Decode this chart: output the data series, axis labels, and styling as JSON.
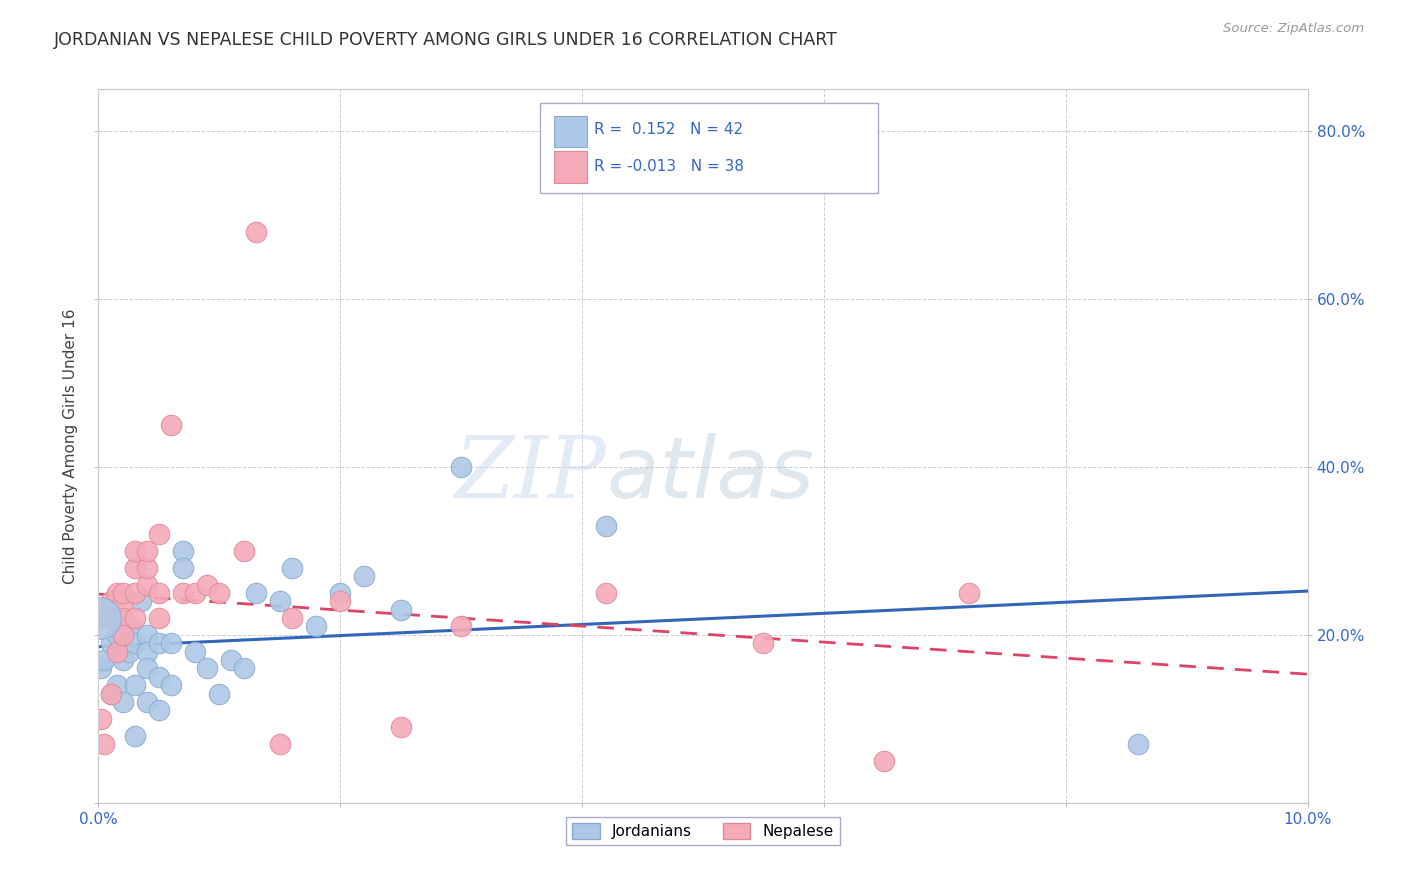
{
  "title": "JORDANIAN VS NEPALESE CHILD POVERTY AMONG GIRLS UNDER 16 CORRELATION CHART",
  "source": "Source: ZipAtlas.com",
  "ylabel": "Child Poverty Among Girls Under 16",
  "xlim": [
    0.0,
    0.1
  ],
  "ylim": [
    0.0,
    0.85
  ],
  "watermark_zip": "ZIP",
  "watermark_atlas": "atlas",
  "jordanians_color": "#adc8e6",
  "nepalese_color": "#f5aab8",
  "jordanians_edge": "#88aacc",
  "nepalese_edge": "#e08898",
  "jordanians_line_color": "#3366bb",
  "nepalese_line_color": "#dd4466",
  "R_jordanians": 0.152,
  "N_jordanians": 42,
  "R_nepalese": -0.013,
  "N_nepalese": 38,
  "jordanians_x": [
    0.0002,
    0.0005,
    0.001,
    0.001,
    0.001,
    0.0015,
    0.0015,
    0.002,
    0.002,
    0.002,
    0.0025,
    0.0025,
    0.003,
    0.003,
    0.003,
    0.0035,
    0.004,
    0.004,
    0.004,
    0.004,
    0.005,
    0.005,
    0.005,
    0.006,
    0.006,
    0.007,
    0.007,
    0.008,
    0.009,
    0.01,
    0.011,
    0.012,
    0.013,
    0.015,
    0.016,
    0.018,
    0.02,
    0.022,
    0.025,
    0.03,
    0.042,
    0.086
  ],
  "jordanians_y": [
    0.16,
    0.17,
    0.22,
    0.19,
    0.13,
    0.2,
    0.14,
    0.2,
    0.17,
    0.12,
    0.21,
    0.18,
    0.19,
    0.14,
    0.08,
    0.24,
    0.2,
    0.18,
    0.16,
    0.12,
    0.19,
    0.15,
    0.11,
    0.19,
    0.14,
    0.3,
    0.28,
    0.18,
    0.16,
    0.13,
    0.17,
    0.16,
    0.25,
    0.24,
    0.28,
    0.21,
    0.25,
    0.27,
    0.23,
    0.4,
    0.33,
    0.07
  ],
  "nepalese_x": [
    0.0001,
    0.0002,
    0.0005,
    0.001,
    0.001,
    0.001,
    0.0015,
    0.0015,
    0.002,
    0.002,
    0.002,
    0.002,
    0.003,
    0.003,
    0.003,
    0.003,
    0.004,
    0.004,
    0.004,
    0.005,
    0.005,
    0.005,
    0.006,
    0.007,
    0.008,
    0.009,
    0.01,
    0.012,
    0.013,
    0.015,
    0.016,
    0.02,
    0.025,
    0.03,
    0.042,
    0.055,
    0.065,
    0.072
  ],
  "nepalese_y": [
    0.22,
    0.1,
    0.07,
    0.24,
    0.22,
    0.13,
    0.25,
    0.18,
    0.24,
    0.22,
    0.2,
    0.25,
    0.28,
    0.25,
    0.3,
    0.22,
    0.26,
    0.28,
    0.3,
    0.32,
    0.25,
    0.22,
    0.45,
    0.25,
    0.25,
    0.26,
    0.25,
    0.3,
    0.68,
    0.07,
    0.22,
    0.24,
    0.09,
    0.21,
    0.25,
    0.19,
    0.05,
    0.25
  ],
  "grid_color": "#ccccdd",
  "background_color": "#ffffff",
  "legend_text_color": "#3366cc",
  "title_color": "#333333"
}
